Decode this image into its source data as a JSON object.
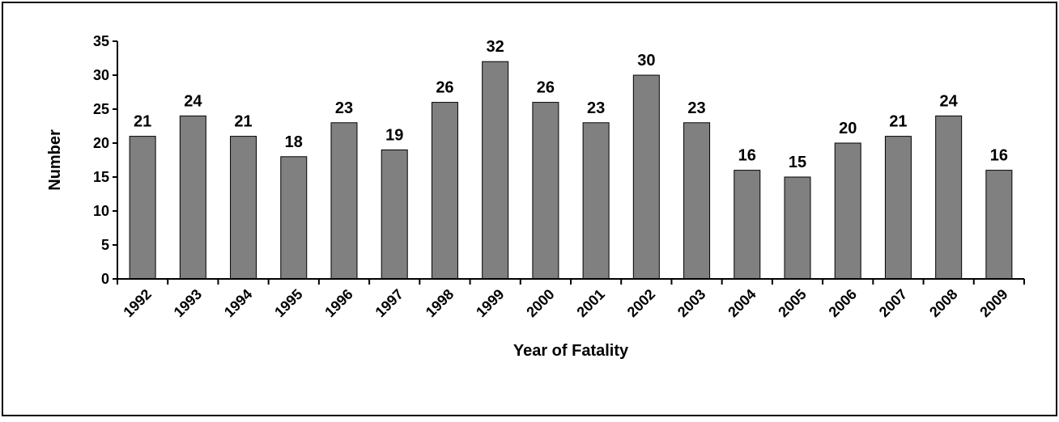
{
  "chart_data": {
    "type": "bar",
    "x_label": "Year of Fatality",
    "y_label": "Number",
    "categories": [
      "1992",
      "1993",
      "1994",
      "1995",
      "1996",
      "1997",
      "1998",
      "1999",
      "2000",
      "2001",
      "2002",
      "2003",
      "2004",
      "2005",
      "2006",
      "2007",
      "2008",
      "2009"
    ],
    "values": [
      21,
      24,
      21,
      18,
      23,
      19,
      26,
      32,
      26,
      23,
      30,
      23,
      16,
      15,
      20,
      21,
      24,
      16
    ],
    "color": "#808080",
    "ylim": [
      0,
      35
    ],
    "yticks": [
      0,
      5,
      10,
      15,
      20,
      25,
      30,
      35
    ],
    "grid": false
  }
}
